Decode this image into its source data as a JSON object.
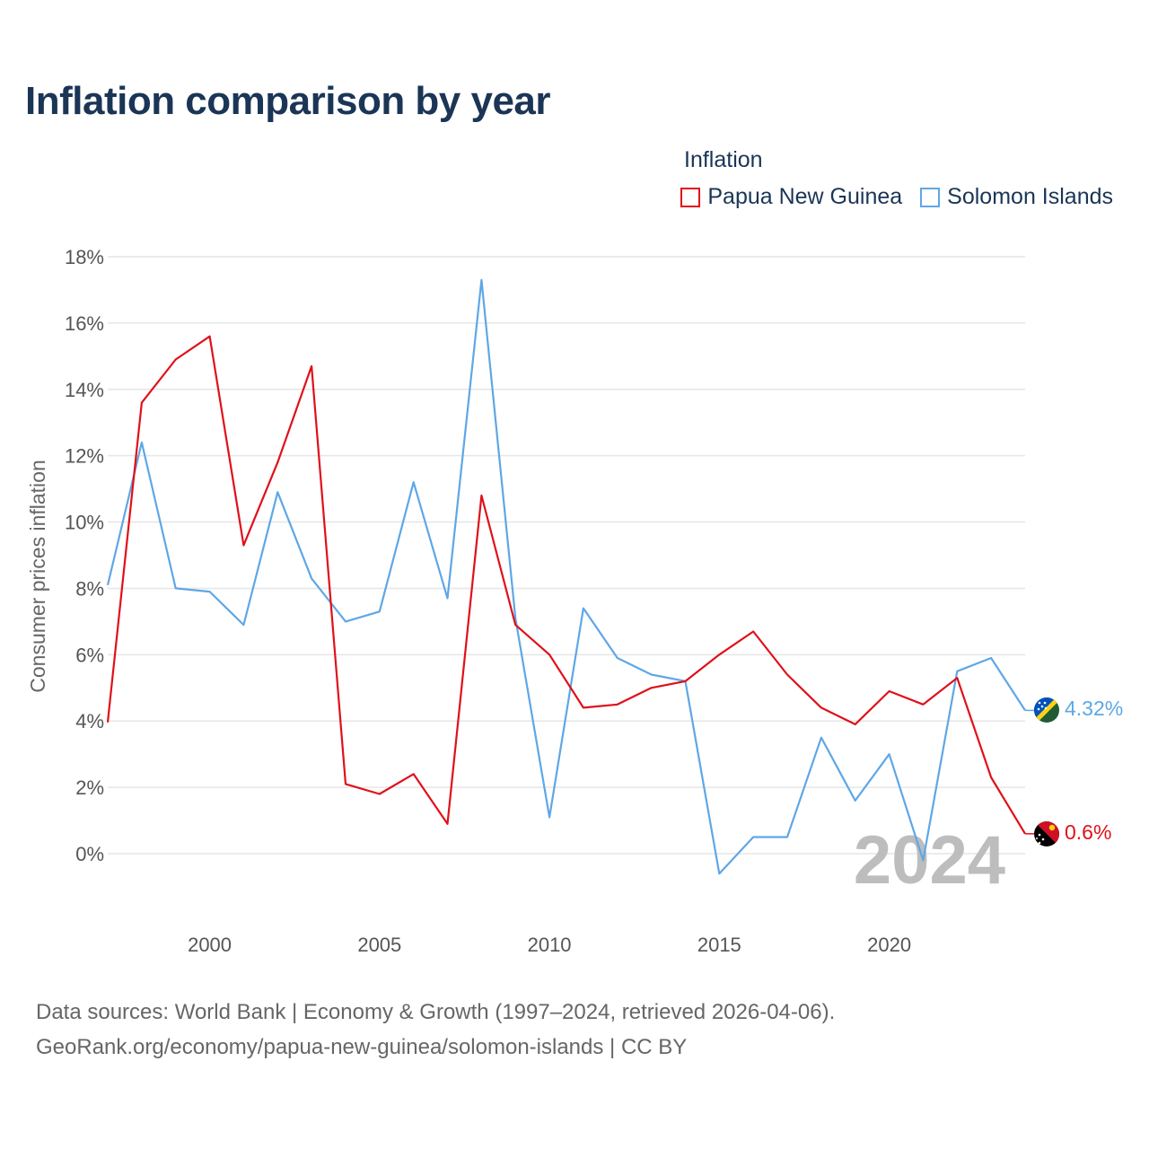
{
  "title": "Inflation comparison by year",
  "legend": {
    "title": "Inflation",
    "items": [
      {
        "name": "Papua New Guinea",
        "color": "#e0101a"
      },
      {
        "name": "Solomon Islands",
        "color": "#5ea7e6"
      }
    ]
  },
  "chart_data": {
    "type": "line",
    "title": "Inflation comparison by year",
    "xlabel": "",
    "ylabel": "Consumer prices inflation",
    "xlim": [
      1997,
      2024
    ],
    "ylim": [
      -2,
      18
    ],
    "y_ticks": [
      0,
      2,
      4,
      6,
      8,
      10,
      12,
      14,
      16,
      18
    ],
    "y_tick_labels": [
      "0%",
      "2%",
      "4%",
      "6%",
      "8%",
      "10%",
      "12%",
      "14%",
      "16%",
      "18%"
    ],
    "x_ticks": [
      2000,
      2005,
      2010,
      2015,
      2020
    ],
    "x_tick_labels": [
      "2000",
      "2005",
      "2010",
      "2015",
      "2020"
    ],
    "grid": true,
    "legend_position": "top-right",
    "x": [
      1997,
      1998,
      1999,
      2000,
      2001,
      2002,
      2003,
      2004,
      2005,
      2006,
      2007,
      2008,
      2009,
      2010,
      2011,
      2012,
      2013,
      2014,
      2015,
      2016,
      2017,
      2018,
      2019,
      2020,
      2021,
      2022,
      2023,
      2024
    ],
    "series": [
      {
        "name": "Papua New Guinea",
        "color": "#e0101a",
        "values": [
          3.96,
          13.6,
          14.9,
          15.6,
          9.3,
          11.8,
          14.7,
          2.1,
          1.8,
          2.4,
          0.9,
          10.8,
          6.9,
          6.0,
          4.4,
          4.5,
          5.0,
          5.2,
          6.0,
          6.7,
          5.4,
          4.4,
          3.9,
          4.9,
          4.5,
          5.3,
          2.3,
          0.6
        ],
        "end_label": "0.6%",
        "flag": "papua-new-guinea-flag"
      },
      {
        "name": "Solomon Islands",
        "color": "#5ea7e6",
        "values": [
          8.1,
          12.4,
          8.0,
          7.9,
          6.9,
          10.9,
          8.3,
          7.0,
          7.3,
          11.2,
          7.7,
          17.3,
          7.1,
          1.1,
          7.4,
          5.9,
          5.4,
          5.2,
          -0.6,
          0.5,
          0.5,
          3.5,
          1.6,
          3.0,
          -0.2,
          5.5,
          5.9,
          4.32
        ],
        "end_label": "4.32%",
        "flag": "solomon-islands-flag"
      }
    ],
    "annotations": [
      "2024"
    ]
  },
  "source": {
    "line1": "Data sources: World Bank | Economy & Growth (1997–2024, retrieved 2026-04-06).",
    "line2": "GeoRank.org/economy/papua-new-guinea/solomon-islands | CC BY"
  }
}
